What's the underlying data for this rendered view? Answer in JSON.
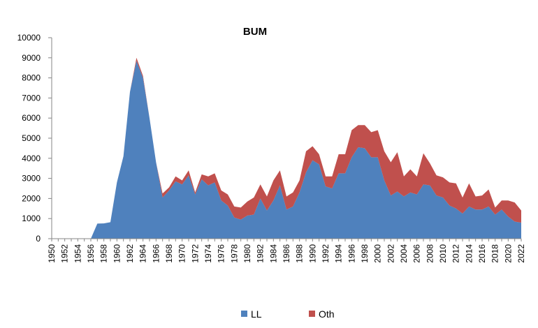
{
  "chart_data": {
    "type": "area",
    "stacked": true,
    "title": "BUM",
    "xlabel": "",
    "ylabel": "",
    "ylim": [
      0,
      10000
    ],
    "yticks": [
      0,
      1000,
      2000,
      3000,
      4000,
      5000,
      6000,
      7000,
      8000,
      9000,
      10000
    ],
    "xticks": [
      1950,
      1952,
      1954,
      1956,
      1958,
      1960,
      1962,
      1964,
      1966,
      1968,
      1970,
      1972,
      1974,
      1976,
      1978,
      1980,
      1982,
      1984,
      1986,
      1988,
      1990,
      1992,
      1994,
      1996,
      1998,
      2000,
      2002,
      2004,
      2006,
      2008,
      2010,
      2012,
      2014,
      2016,
      2018,
      2020,
      2022
    ],
    "grid": false,
    "legend_position": "bottom",
    "x": [
      1950,
      1951,
      1952,
      1953,
      1954,
      1955,
      1956,
      1957,
      1958,
      1959,
      1960,
      1961,
      1962,
      1963,
      1964,
      1965,
      1966,
      1967,
      1968,
      1969,
      1970,
      1971,
      1972,
      1973,
      1974,
      1975,
      1976,
      1977,
      1978,
      1979,
      1980,
      1981,
      1982,
      1983,
      1984,
      1985,
      1986,
      1987,
      1988,
      1989,
      1990,
      1991,
      1992,
      1993,
      1994,
      1995,
      1996,
      1997,
      1998,
      1999,
      2000,
      2001,
      2002,
      2003,
      2004,
      2005,
      2006,
      2007,
      2008,
      2009,
      2010,
      2011,
      2012,
      2013,
      2014,
      2015,
      2016,
      2017,
      2018,
      2019,
      2020,
      2021,
      2022
    ],
    "series": [
      {
        "name": "LL",
        "color": "#4f81bd",
        "values": [
          0,
          0,
          0,
          0,
          0,
          0,
          0,
          750,
          760,
          820,
          2800,
          4100,
          7300,
          8850,
          8000,
          6000,
          3800,
          2050,
          2400,
          2850,
          2700,
          3150,
          2200,
          2950,
          2650,
          2800,
          1900,
          1650,
          1050,
          950,
          1150,
          1200,
          2000,
          1400,
          1900,
          2650,
          1450,
          1600,
          2300,
          3300,
          3900,
          3700,
          2600,
          2500,
          3250,
          3250,
          4050,
          4550,
          4500,
          4050,
          4050,
          2900,
          2150,
          2350,
          2100,
          2300,
          2200,
          2700,
          2650,
          2150,
          2050,
          1650,
          1500,
          1250,
          1600,
          1450,
          1450,
          1600,
          1200,
          1450,
          1100,
          850,
          800
        ]
      },
      {
        "name": "Oth",
        "color": "#c0504d",
        "values": [
          0,
          0,
          0,
          0,
          0,
          0,
          0,
          0,
          0,
          0,
          0,
          0,
          0,
          150,
          100,
          0,
          0,
          200,
          150,
          250,
          200,
          250,
          100,
          250,
          450,
          450,
          500,
          550,
          550,
          600,
          700,
          850,
          700,
          700,
          1000,
          750,
          650,
          700,
          600,
          1050,
          700,
          500,
          500,
          600,
          950,
          950,
          1350,
          1100,
          1150,
          1250,
          1350,
          1450,
          1650,
          1950,
          1000,
          1150,
          900,
          1550,
          1100,
          1000,
          1000,
          1150,
          1250,
          800,
          1150,
          650,
          700,
          850,
          350,
          450,
          800,
          950,
          600
        ]
      }
    ]
  }
}
